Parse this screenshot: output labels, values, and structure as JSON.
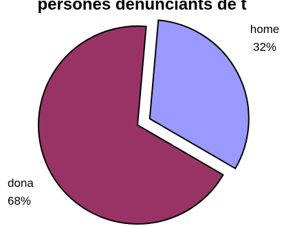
{
  "chart_data": {
    "type": "pie",
    "title": "persones denunciants de t",
    "slices": [
      {
        "label": "home",
        "value": 32,
        "value_label": "32%",
        "color": "#9999ff",
        "exploded": true
      },
      {
        "label": "dona",
        "value": 68,
        "value_label": "68%",
        "color": "#993366",
        "exploded": false
      }
    ],
    "legend": "none"
  }
}
